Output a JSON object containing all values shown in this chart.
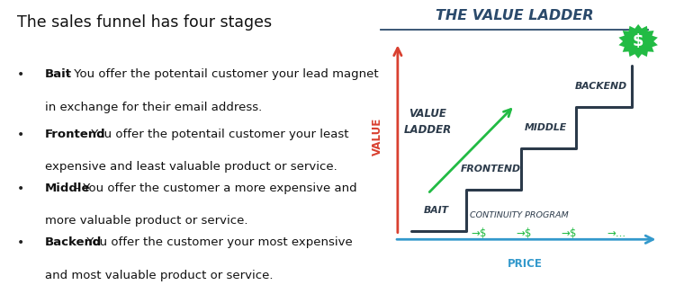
{
  "title": "The sales funnel has four stages",
  "bullets": [
    {
      "bold": "Bait",
      "rest_line1": " - You offer the potentail customer your lead magnet",
      "rest_line2": "in exchange for their email address."
    },
    {
      "bold": "Frontend",
      "rest_line1": " - You offer the potentail customer your least",
      "rest_line2": "expensive and least valuable product or service."
    },
    {
      "bold": "Middle",
      "rest_line1": " - You offer the customer a more expensive and",
      "rest_line2": "more valuable product or service."
    },
    {
      "bold": "Backend",
      "rest_line1": " - You offer the customer your most expensive",
      "rest_line2": "and most valuable product or service."
    }
  ],
  "diagram_title": "THE VALUE LADDER",
  "diagram_title_color": "#2b4a6b",
  "value_label": "VALUE",
  "value_label_color": "#d94030",
  "price_label": "PRICE",
  "price_label_color": "#3399cc",
  "stair_labels": [
    "BAIT",
    "FRONTEND",
    "MIDDLE",
    "BACKEND"
  ],
  "stair_label_color": "#2b3a4a",
  "continuity_label": "CONTINUITY PROGRAM",
  "continuity_label_color": "#2b3a4a",
  "value_ladder_label_line1": "VALUE",
  "value_ladder_label_line2": "LADDER",
  "value_ladder_color": "#2b3a4a",
  "green": "#22bb44",
  "stair_color": "#2b3a4a",
  "bg_color": "#ffffff"
}
